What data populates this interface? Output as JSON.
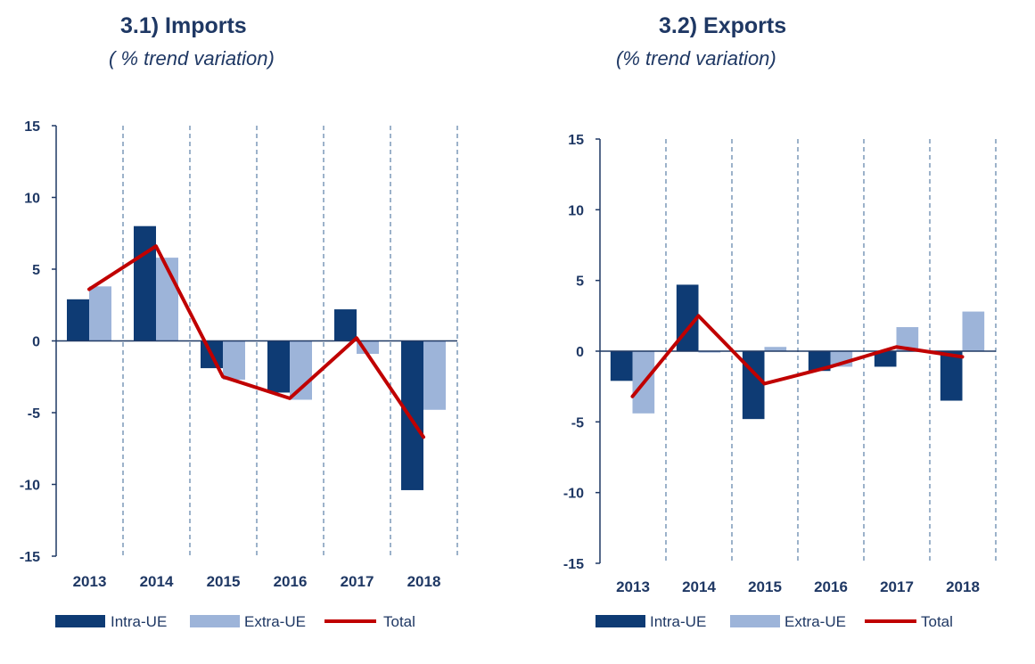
{
  "colors": {
    "intra": "#0e3b74",
    "extra": "#9db4d9",
    "total": "#c00000",
    "axis": "#1f3864",
    "text": "#1f3864",
    "grid": "#5b7fa6"
  },
  "legend": {
    "intra": "Intra-UE",
    "extra": "Extra-UE",
    "total": "Total"
  },
  "chart_data": [
    {
      "type": "bar",
      "title": "3.1) Imports",
      "subtitle": "( % trend variation)",
      "categories": [
        "2013",
        "2014",
        "2015",
        "2016",
        "2017",
        "2018"
      ],
      "ylim": [
        -15,
        15
      ],
      "yticks": [
        15,
        10,
        5,
        0,
        -5,
        -10,
        -15
      ],
      "grid": "vertical-dashed",
      "legend_position": "bottom",
      "series": [
        {
          "name": "Intra-UE",
          "kind": "bar",
          "values": [
            2.9,
            8.0,
            -1.9,
            -3.6,
            2.2,
            -10.4
          ]
        },
        {
          "name": "Extra-UE",
          "kind": "bar",
          "values": [
            3.8,
            5.8,
            -2.7,
            -4.1,
            -0.9,
            -4.8
          ]
        },
        {
          "name": "Total",
          "kind": "line",
          "values": [
            3.6,
            6.6,
            -2.5,
            -4.0,
            0.2,
            -6.7
          ]
        }
      ]
    },
    {
      "type": "bar",
      "title": "3.2) Exports",
      "subtitle": "(% trend variation)",
      "categories": [
        "2013",
        "2014",
        "2015",
        "2016",
        "2017",
        "2018"
      ],
      "ylim": [
        -15,
        15
      ],
      "yticks": [
        15,
        10,
        5,
        0,
        -5,
        -10,
        -15
      ],
      "grid": "vertical-dashed",
      "legend_position": "bottom",
      "series": [
        {
          "name": "Intra-UE",
          "kind": "bar",
          "values": [
            -2.1,
            4.7,
            -4.8,
            -1.4,
            -1.1,
            -3.5
          ]
        },
        {
          "name": "Extra-UE",
          "kind": "bar",
          "values": [
            -4.4,
            -0.1,
            0.3,
            -1.1,
            1.7,
            2.8
          ]
        },
        {
          "name": "Total",
          "kind": "line",
          "values": [
            -3.2,
            2.5,
            -2.3,
            -1.1,
            0.3,
            -0.4
          ]
        }
      ]
    }
  ]
}
